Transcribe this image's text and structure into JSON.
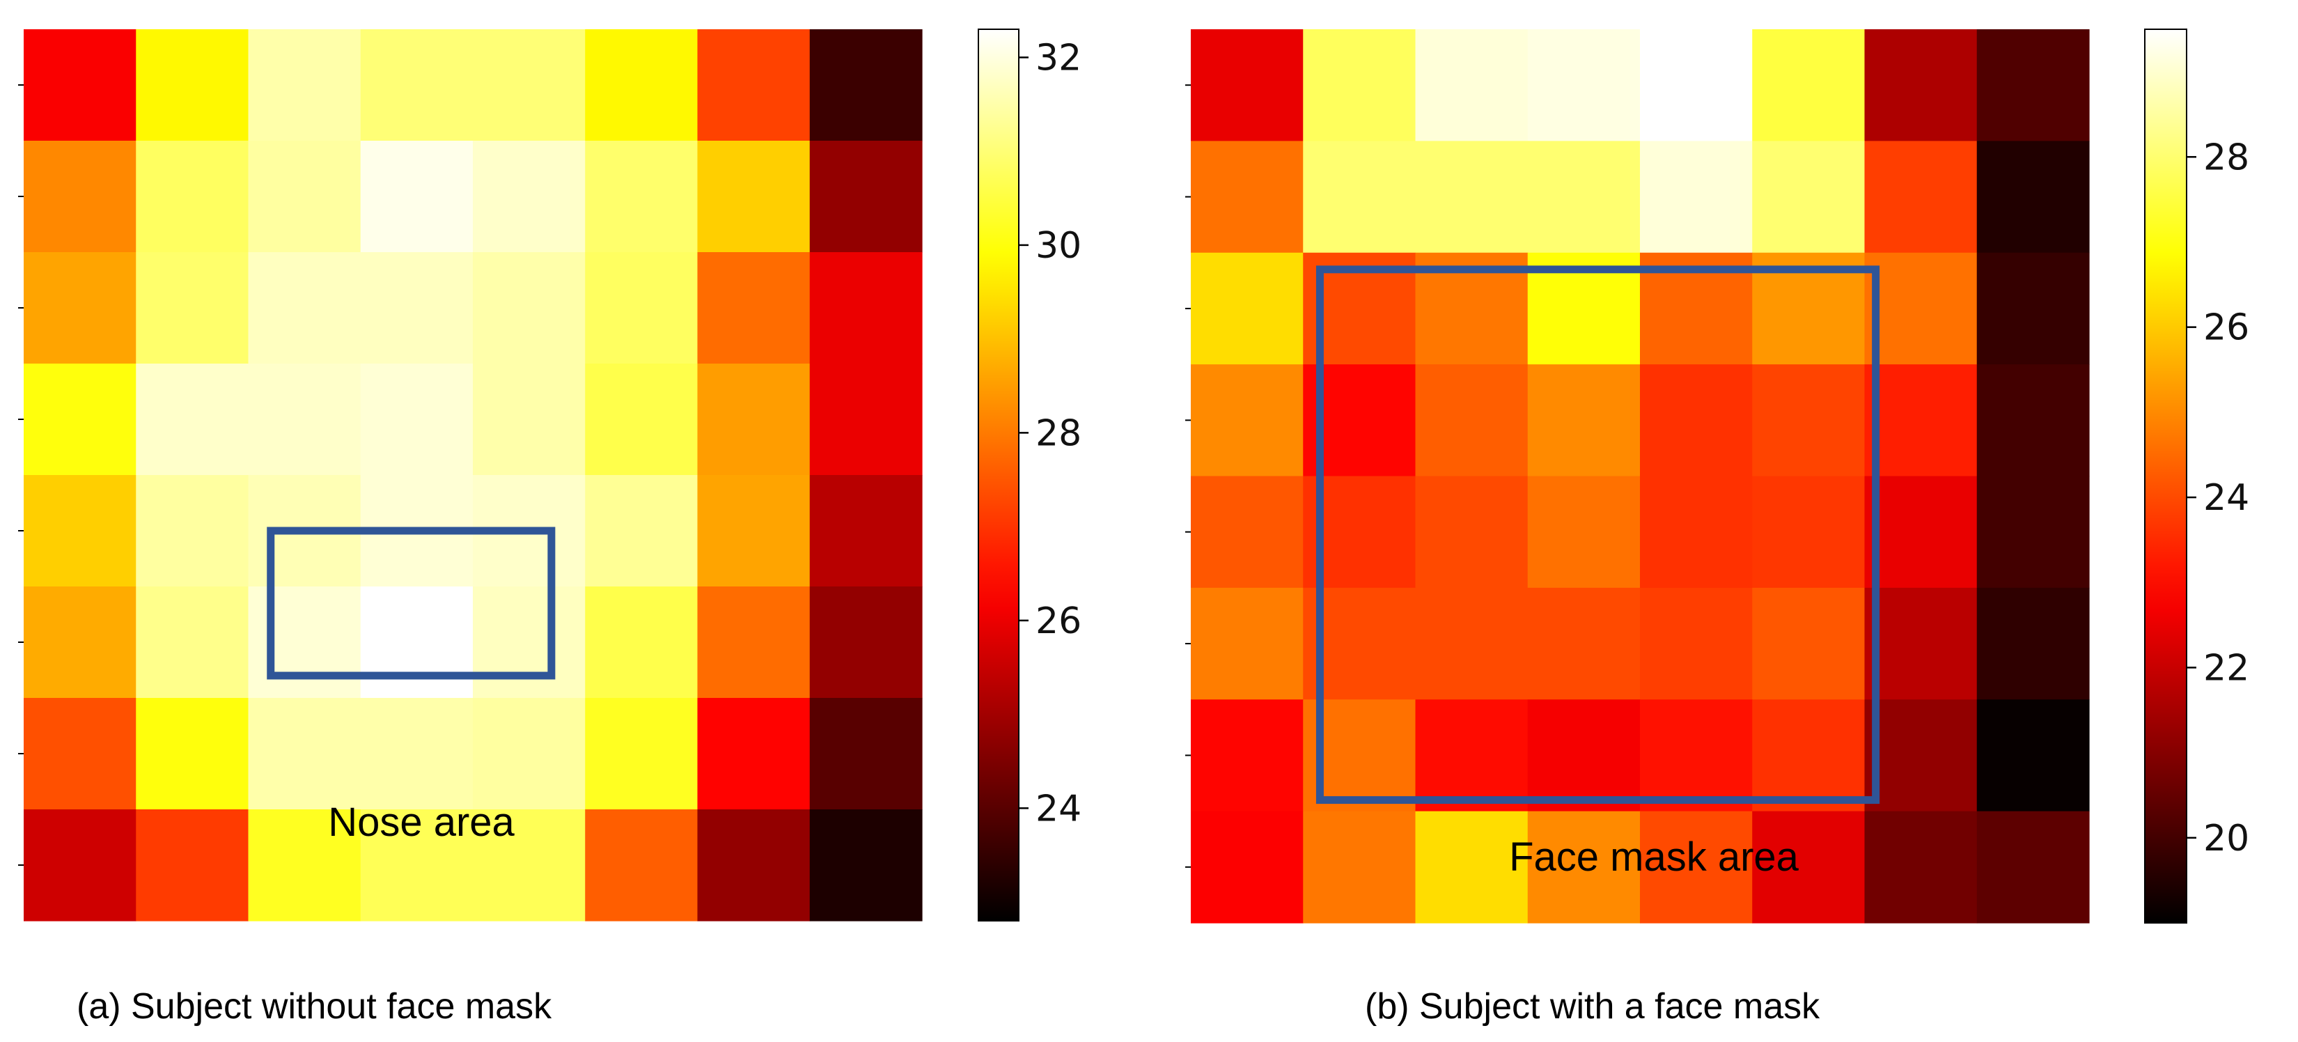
{
  "chart_data": [
    {
      "type": "heatmap",
      "caption": "(a) Subject without face mask",
      "annotation": "Nose area",
      "rows": 8,
      "cols": 8,
      "values": [
        [
          26.2,
          29.8,
          31.5,
          31.0,
          31.0,
          29.8,
          27.2,
          23.6
        ],
        [
          28.2,
          30.8,
          31.4,
          32.1,
          31.8,
          30.9,
          29.2,
          24.8
        ],
        [
          28.6,
          30.9,
          31.7,
          31.7,
          31.5,
          30.8,
          27.8,
          26.0
        ],
        [
          30.0,
          31.8,
          31.8,
          31.9,
          31.5,
          30.6,
          28.5,
          26.0
        ],
        [
          29.2,
          31.4,
          31.6,
          31.9,
          31.8,
          31.3,
          28.6,
          25.3
        ],
        [
          28.7,
          31.2,
          31.9,
          32.3,
          31.7,
          30.6,
          27.8,
          24.8
        ],
        [
          27.4,
          30.0,
          31.5,
          31.5,
          31.4,
          30.2,
          26.3,
          24.0
        ],
        [
          25.6,
          27.1,
          30.2,
          30.7,
          30.7,
          27.6,
          24.8,
          23.2
        ]
      ],
      "colorbar": {
        "min": 22.8,
        "max": 32.3,
        "ticks": [
          24,
          26,
          28,
          30,
          32
        ]
      },
      "highlight": {
        "label": "Nose area",
        "row_start": 4.5,
        "row_end": 5.8,
        "col_start": 2.2,
        "col_end": 4.7
      }
    },
    {
      "type": "heatmap",
      "caption": "(b) Subject with a face mask",
      "annotation": "Face mask area",
      "rows": 8,
      "cols": 8,
      "values": [
        [
          22.5,
          27.8,
          29.1,
          29.2,
          29.5,
          27.5,
          21.6,
          20.2
        ],
        [
          24.6,
          28.0,
          28.0,
          28.0,
          29.1,
          28.0,
          23.8,
          19.5
        ],
        [
          26.3,
          24.0,
          24.7,
          26.9,
          24.4,
          25.2,
          24.6,
          19.8
        ],
        [
          25.0,
          22.9,
          24.3,
          25.0,
          23.6,
          23.9,
          23.3,
          20.0
        ],
        [
          24.2,
          23.6,
          24.0,
          24.6,
          23.6,
          23.7,
          22.5,
          20.0
        ],
        [
          24.8,
          24.0,
          24.0,
          24.0,
          23.8,
          24.2,
          21.8,
          19.7
        ],
        [
          22.9,
          24.6,
          23.0,
          22.7,
          23.1,
          23.6,
          21.2,
          19.1
        ],
        [
          22.8,
          24.7,
          26.3,
          25.0,
          24.0,
          22.4,
          20.7,
          20.4
        ]
      ],
      "colorbar": {
        "min": 19.0,
        "max": 29.5,
        "ticks": [
          20,
          22,
          24,
          26,
          28
        ]
      },
      "highlight": {
        "label": "Face mask area",
        "row_start": 2.15,
        "row_end": 6.9,
        "col_start": 1.15,
        "col_end": 6.1
      }
    }
  ]
}
